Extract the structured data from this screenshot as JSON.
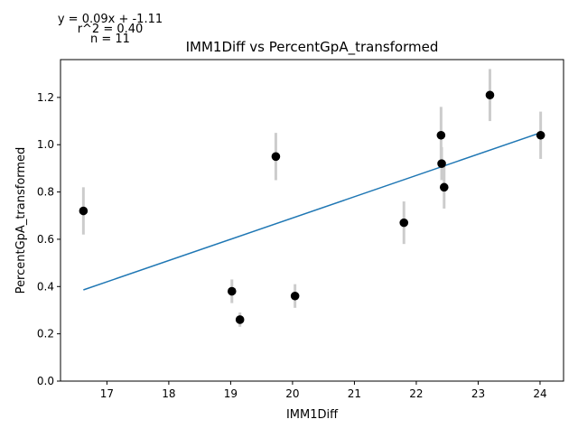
{
  "chart_data": {
    "type": "scatter",
    "title": "IMM1Diff vs PercentGpA_transformed",
    "xlabel": "IMM1Diff",
    "ylabel": "PercentGpA_transformed",
    "xlim": [
      16.25,
      24.38
    ],
    "ylim": [
      0.0,
      1.36
    ],
    "xticks": [
      "17",
      "18",
      "19",
      "20",
      "21",
      "22",
      "23",
      "24"
    ],
    "yticks": [
      "0.0",
      "0.2",
      "0.4",
      "0.6",
      "0.8",
      "1.0",
      "1.2"
    ],
    "grid": false,
    "annotations": {
      "equation": "y = 0.09x + -1.11",
      "r2": "r^2 = 0.40",
      "n": "n = 11"
    },
    "fit_line": {
      "slope": 0.09,
      "intercept": -1.11,
      "x_range": [
        16.62,
        24.01
      ]
    },
    "points": [
      {
        "x": 16.62,
        "y": 0.72,
        "err": 0.1
      },
      {
        "x": 19.02,
        "y": 0.38,
        "err": 0.05
      },
      {
        "x": 19.15,
        "y": 0.26,
        "err": 0.03
      },
      {
        "x": 19.73,
        "y": 0.95,
        "err": 0.1
      },
      {
        "x": 20.04,
        "y": 0.36,
        "err": 0.05
      },
      {
        "x": 21.8,
        "y": 0.67,
        "err": 0.09
      },
      {
        "x": 22.4,
        "y": 1.04,
        "err": 0.12
      },
      {
        "x": 22.41,
        "y": 0.92,
        "err": 0.07
      },
      {
        "x": 22.45,
        "y": 0.82,
        "err": 0.09
      },
      {
        "x": 23.19,
        "y": 1.21,
        "err": 0.11
      },
      {
        "x": 24.01,
        "y": 1.04,
        "err": 0.1
      }
    ],
    "colors": {
      "marker": "#000000",
      "errorbar": "#cccccc",
      "fit_line": "#1f77b4",
      "axes": "#000000"
    }
  }
}
